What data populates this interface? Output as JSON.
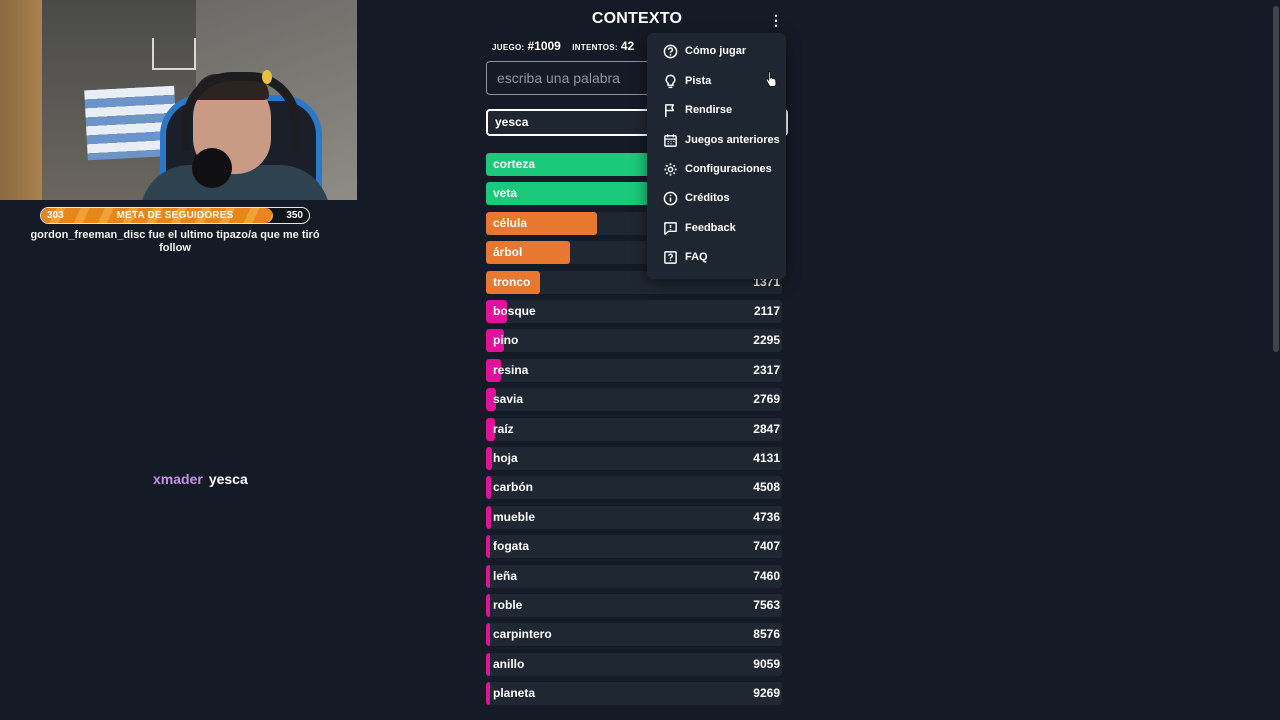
{
  "stream": {
    "goal": {
      "title": "META DE SEGUIDORES",
      "current": "303",
      "target": "350",
      "progress": 0.865
    },
    "last_follow": "gordon_freeman_disc fue el ultimo tipazo/a que me tiró follow",
    "chat": {
      "user": "xmader",
      "message": "yesca"
    }
  },
  "game": {
    "title": "CONTEXTO",
    "menu_icon": "kebab-icon",
    "game_label": "JUEGO:",
    "game_number": "#1009",
    "attempts_label": "INTENTOS:",
    "attempts": "42",
    "input_placeholder": "escriba una palabra",
    "last_guess": {
      "word": "yesca",
      "rank": ""
    },
    "guesses": [
      {
        "word": "corteza",
        "rank": "",
        "color": "#1bc97b",
        "fill": 0.93
      },
      {
        "word": "veta",
        "rank": "",
        "color": "#1bc97b",
        "fill": 0.85
      },
      {
        "word": "célula",
        "rank": "",
        "color": "#e8782f",
        "fill": 0.375
      },
      {
        "word": "árbol",
        "rank": "",
        "color": "#e8782f",
        "fill": 0.285
      },
      {
        "word": "tronco",
        "rank": "1371",
        "color": "#e8782f",
        "fill": 0.183
      },
      {
        "word": "bosque",
        "rank": "2117",
        "color": "#e0129a",
        "fill": 0.07
      },
      {
        "word": "pino",
        "rank": "2295",
        "color": "#e0129a",
        "fill": 0.06
      },
      {
        "word": "resina",
        "rank": "2317",
        "color": "#e0129a",
        "fill": 0.052
      },
      {
        "word": "savia",
        "rank": "2769",
        "color": "#e0129a",
        "fill": 0.035
      },
      {
        "word": "raíz",
        "rank": "2847",
        "color": "#e0129a",
        "fill": 0.03
      },
      {
        "word": "hoja",
        "rank": "4131",
        "color": "#e0129a",
        "fill": 0.02
      },
      {
        "word": "carbón",
        "rank": "4508",
        "color": "#e0129a",
        "fill": 0.018
      },
      {
        "word": "mueble",
        "rank": "4736",
        "color": "#e0129a",
        "fill": 0.016
      },
      {
        "word": "fogata",
        "rank": "7407",
        "color": "#e0129a",
        "fill": 0.012
      },
      {
        "word": "leña",
        "rank": "7460",
        "color": "#e0129a",
        "fill": 0.012
      },
      {
        "word": "roble",
        "rank": "7563",
        "color": "#e0129a",
        "fill": 0.011
      },
      {
        "word": "carpintero",
        "rank": "8576",
        "color": "#e0129a",
        "fill": 0.01
      },
      {
        "word": "anillo",
        "rank": "9059",
        "color": "#e0129a",
        "fill": 0.01
      },
      {
        "word": "planeta",
        "rank": "9269",
        "color": "#e0129a",
        "fill": 0.01
      }
    ]
  },
  "menu": {
    "items": [
      {
        "label": "Cómo jugar",
        "icon": "help-circle-icon"
      },
      {
        "label": "Pista",
        "icon": "lightbulb-icon"
      },
      {
        "label": "Rendirse",
        "icon": "flag-icon"
      },
      {
        "label": "Juegos anteriores",
        "icon": "calendar-icon"
      },
      {
        "label": "Configuraciones",
        "icon": "gear-icon"
      },
      {
        "label": "Créditos",
        "icon": "info-icon"
      },
      {
        "label": "Feedback",
        "icon": "feedback-icon"
      },
      {
        "label": "FAQ",
        "icon": "faq-icon"
      }
    ]
  }
}
